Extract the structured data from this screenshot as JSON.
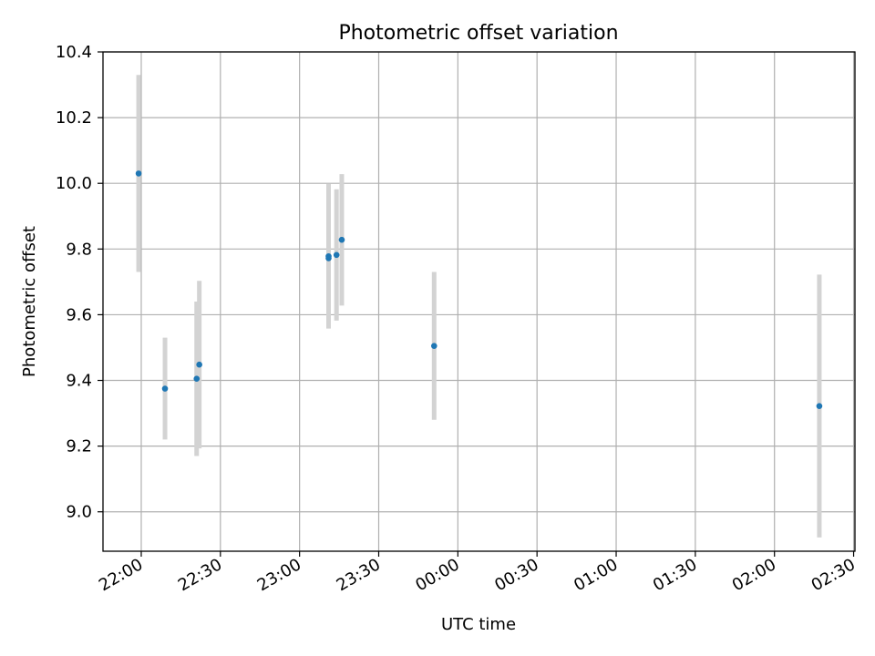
{
  "chart_data": {
    "type": "scatter",
    "title": "Photometric offset variation",
    "xlabel": "UTC time",
    "ylabel": "Photometric offset",
    "x_ticks": [
      "22:00",
      "22:30",
      "23:00",
      "23:30",
      "00:00",
      "00:30",
      "01:00",
      "01:30",
      "02:00",
      "02:30"
    ],
    "y_ticks": [
      "9.0",
      "9.2",
      "9.4",
      "9.6",
      "9.8",
      "10.0",
      "10.2",
      "10.4"
    ],
    "xlim": [
      "21:45:30",
      "02:30:30"
    ],
    "ylim": [
      8.88,
      10.4
    ],
    "grid": true,
    "colors": {
      "point": "#1f77b4",
      "errorbar": "#d3d3d3",
      "grid": "#b0b0b0"
    },
    "points": [
      {
        "x": "21:59",
        "y": 10.03,
        "err": 0.3
      },
      {
        "x": "22:09",
        "y": 9.375,
        "err": 0.155
      },
      {
        "x": "22:21",
        "y": 9.405,
        "err": 0.235
      },
      {
        "x": "22:22",
        "y": 9.448,
        "err": 0.255
      },
      {
        "x": "23:11",
        "y": 9.778,
        "err": 0.22
      },
      {
        "x": "23:11",
        "y": 9.772,
        "err": 0.2
      },
      {
        "x": "23:14",
        "y": 9.782,
        "err": 0.2
      },
      {
        "x": "23:16",
        "y": 9.828,
        "err": 0.2
      },
      {
        "x": "23:51",
        "y": 9.505,
        "err": 0.225
      },
      {
        "x": "02:17",
        "y": 9.322,
        "err": 0.4
      }
    ]
  }
}
